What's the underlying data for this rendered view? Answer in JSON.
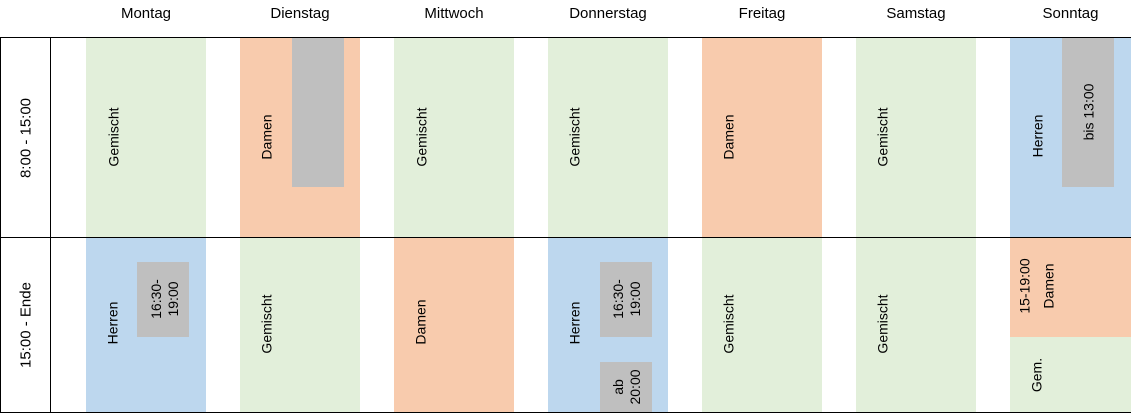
{
  "days": [
    "Montag",
    "Dienstag",
    "Mittwoch",
    "Donnerstag",
    "Freitag",
    "Samstag",
    "Sonntag"
  ],
  "rows": {
    "morning": "8:00 - 15:00",
    "evening": "15:00 - Ende"
  },
  "labels": {
    "mixed": "Gemischt",
    "ladies": "Damen",
    "men": "Herren",
    "gem": "Gem."
  },
  "notes": {
    "mon_evening": "16:30-\n19:00",
    "thu_evening_1": "16:30-\n19:00",
    "thu_evening_2": "ab\n20:00",
    "sun_morning": "bis 13:00",
    "sun_evening_time": "15-19:00",
    "sun_evening_type": "Damen"
  },
  "colors": {
    "mixed": "#e2efda",
    "ladies": "#f8cbad",
    "men": "#bdd7ee",
    "note": "#bfbfbf"
  }
}
